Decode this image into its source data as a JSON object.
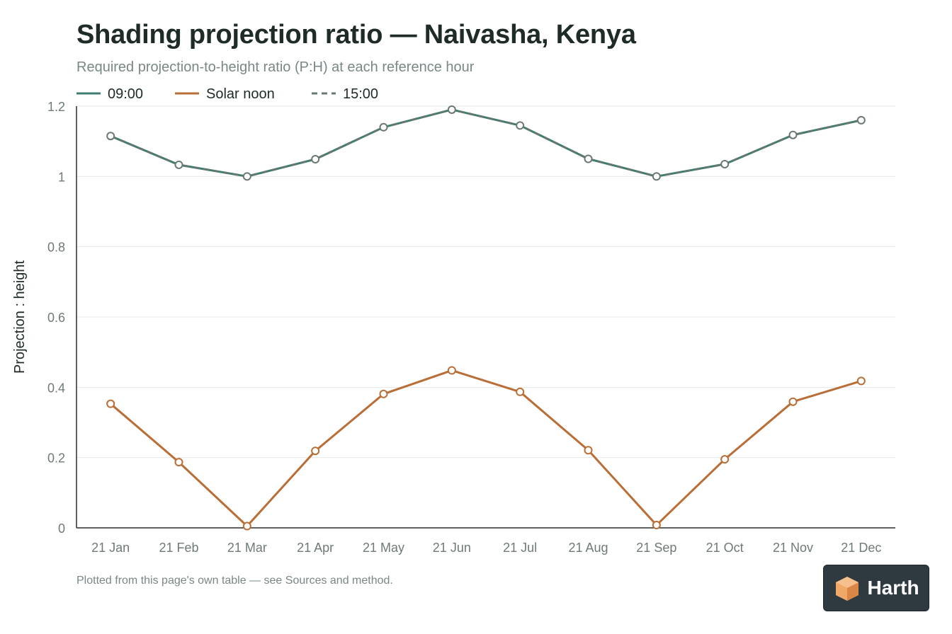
{
  "header": {
    "title": "Shading projection ratio — Naivasha, Kenya",
    "subtitle": "Required projection-to-height ratio (P:H) at each reference hour"
  },
  "footer": {
    "note": "Plotted from this page's own table — see Sources and method."
  },
  "brand": {
    "name": "Harth",
    "icon": "house-cube-icon"
  },
  "colors": {
    "morning": "#3f7d70",
    "afternoon": "#6b7772",
    "noon": "#b86e36",
    "grid": "#e6e9e8",
    "axis": "#2a2f2d",
    "tick": "#6f7a76"
  },
  "chart_data": {
    "type": "line",
    "categories": [
      "21 Jan",
      "21 Feb",
      "21 Mar",
      "21 Apr",
      "21 May",
      "21 Jun",
      "21 Jul",
      "21 Aug",
      "21 Sep",
      "21 Oct",
      "21 Nov",
      "21 Dec"
    ],
    "series": [
      {
        "name": "09:00",
        "color": "#3f7d70",
        "dash": "solid",
        "values": [
          1.115,
          1.033,
          1.0,
          1.049,
          1.14,
          1.19,
          1.145,
          1.05,
          1.0,
          1.035,
          1.118,
          1.16
        ]
      },
      {
        "name": "Solar noon",
        "color": "#b86e36",
        "dash": "solid",
        "values": [
          0.353,
          0.187,
          0.005,
          0.219,
          0.381,
          0.448,
          0.387,
          0.221,
          0.008,
          0.195,
          0.359,
          0.418
        ]
      },
      {
        "name": "15:00",
        "color": "#6b7772",
        "dash": "dashed",
        "values": [
          1.115,
          1.033,
          1.0,
          1.049,
          1.14,
          1.19,
          1.145,
          1.05,
          1.0,
          1.035,
          1.118,
          1.16
        ]
      }
    ],
    "yticks": [
      "0",
      "0.2",
      "0.4",
      "0.6",
      "0.8",
      "1",
      "1.2"
    ],
    "ylabel": "Projection : height",
    "xlabel": "",
    "ylim": [
      0,
      1.2
    ],
    "grid": true,
    "legend_position": "top-left"
  }
}
